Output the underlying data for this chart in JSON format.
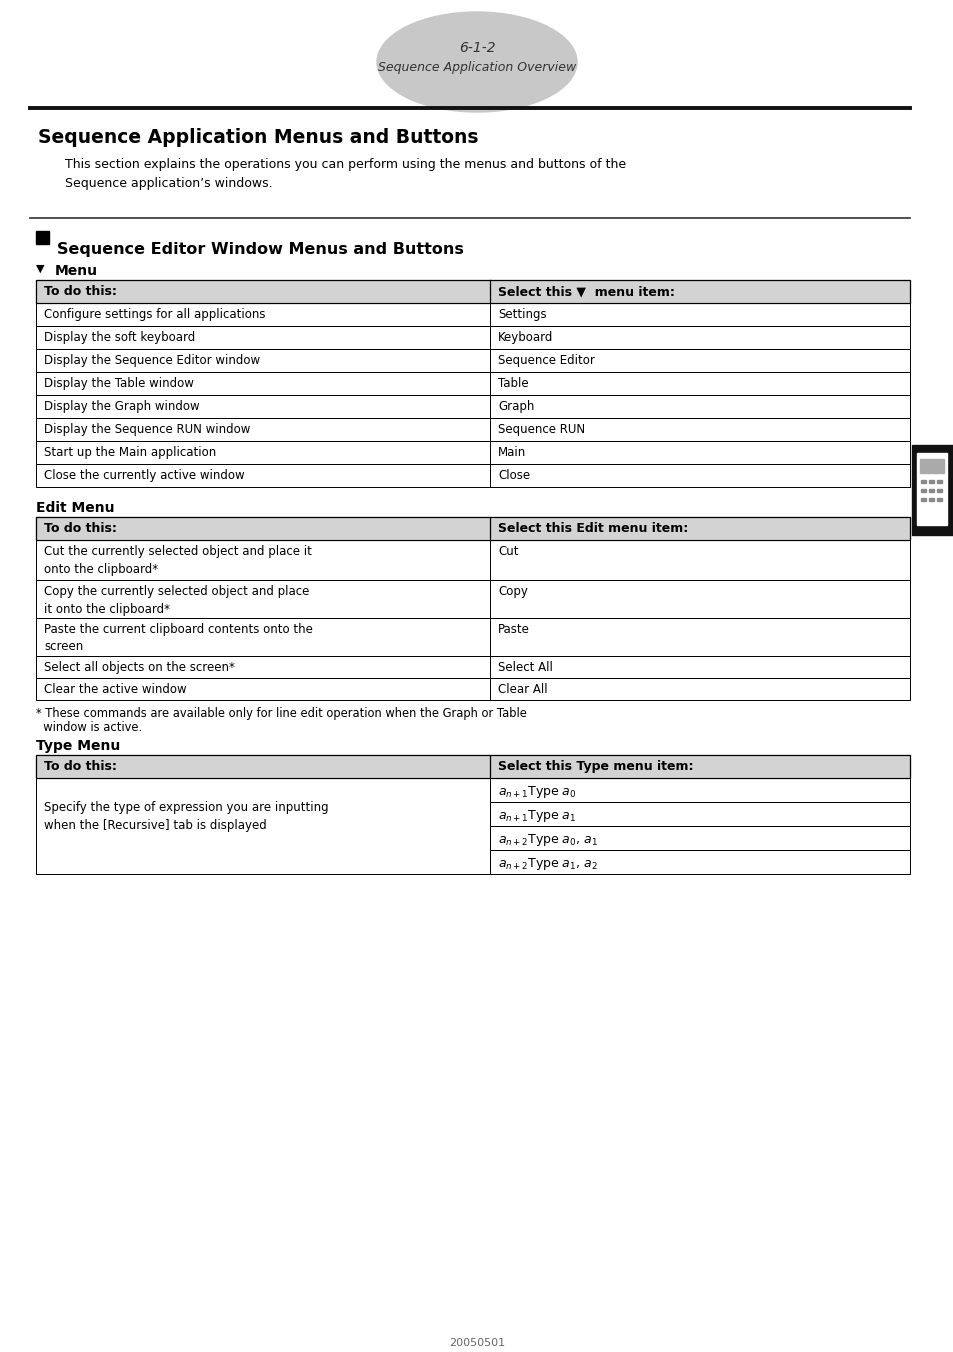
{
  "page_number": "6-1-2",
  "page_subtitle": "Sequence Application Overview",
  "main_title": "Sequence Application Menus and Buttons",
  "intro_text": "This section explains the operations you can perform using the menus and buttons of the\nSequence application’s windows.",
  "section_title": "Sequence Editor Window Menus and Buttons",
  "menu_label": "Menu",
  "table1_header_left": "To do this:",
  "table1_header_right": "Select this ▼  menu item:",
  "table1_rows": [
    [
      "Configure settings for all applications",
      "Settings"
    ],
    [
      "Display the soft keyboard",
      "Keyboard"
    ],
    [
      "Display the Sequence Editor window",
      "Sequence Editor"
    ],
    [
      "Display the Table window",
      "Table"
    ],
    [
      "Display the Graph window",
      "Graph"
    ],
    [
      "Display the Sequence RUN window",
      "Sequence RUN"
    ],
    [
      "Start up the Main application",
      "Main"
    ],
    [
      "Close the currently active window",
      "Close"
    ]
  ],
  "edit_menu_label": "Edit Menu",
  "table2_header_left": "To do this:",
  "table2_header_right": "Select this Edit menu item:",
  "table2_rows": [
    [
      "Cut the currently selected object and place it\nonto the clipboard*",
      "Cut"
    ],
    [
      "Copy the currently selected object and place\nit onto the clipboard*",
      "Copy"
    ],
    [
      "Paste the current clipboard contents onto the\nscreen",
      "Paste"
    ],
    [
      "Select all objects on the screen*",
      "Select All"
    ],
    [
      "Clear the active window",
      "Clear All"
    ]
  ],
  "table2_row_heights": [
    40,
    38,
    38,
    22,
    22
  ],
  "footnote_line1": "* These commands are available only for line edit operation when the Graph or Table",
  "footnote_line2": "  window is active.",
  "type_menu_label": "Type Menu",
  "table3_header_left": "To do this:",
  "table3_header_right": "Select this Type menu item:",
  "table3_left_text": "Specify the type of expression you are inputting\nwhen the [Recursive] tab is displayed",
  "table3_rows_right": [
    "a_{n+1}\\mathrm{Type}\\;a_0",
    "a_{n+1}\\mathrm{Type}\\;a_1",
    "a_{n+2}\\mathrm{Type}\\;a_0,\\,a_1",
    "a_{n+2}\\mathrm{Type}\\;a_1,\\,a_2"
  ],
  "footer_text": "20050501",
  "bg_color": "#ffffff",
  "header_bg": "#d3d3d3",
  "text_color": "#000000",
  "border_color": "#000000"
}
